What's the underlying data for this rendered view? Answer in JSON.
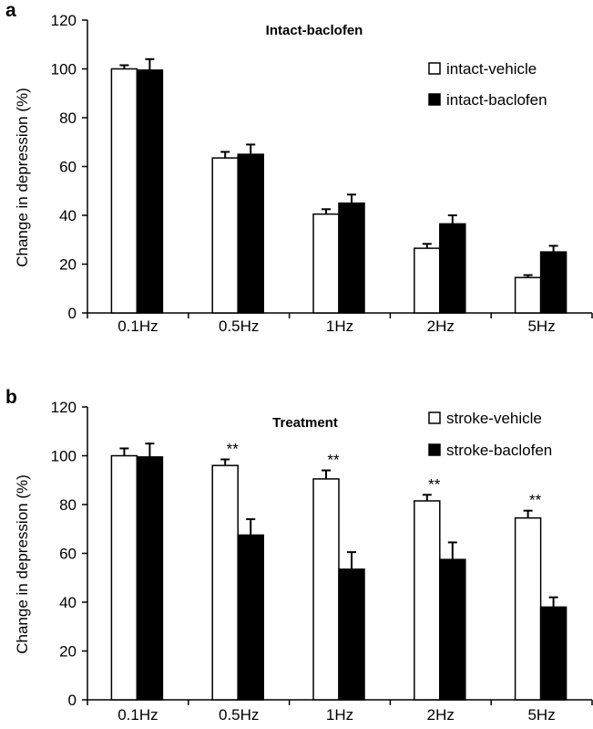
{
  "chart_data": [
    {
      "panel_label": "a",
      "type": "bar",
      "title": "Intact-baclofen",
      "xlabel": "",
      "ylabel": "Change in depression (%)",
      "ylim": [
        0,
        120
      ],
      "yticks": [
        "0",
        "20",
        "40",
        "60",
        "80",
        "100",
        "120"
      ],
      "categories": [
        "0.1Hz",
        "0.5Hz",
        "1Hz",
        "2Hz",
        "5Hz"
      ],
      "legend_position": "top-right",
      "series": [
        {
          "name": "intact-vehicle",
          "color": "#ffffff",
          "values": [
            100,
            63.5,
            40.5,
            26.5,
            14.5
          ],
          "errors": [
            1.5,
            2.5,
            2,
            1.8,
            1
          ]
        },
        {
          "name": "intact-baclofen",
          "color": "#000000",
          "values": [
            99.5,
            65,
            45,
            36.5,
            25
          ],
          "errors": [
            4.5,
            4,
            3.5,
            3.5,
            2.5
          ]
        }
      ],
      "annotations": []
    },
    {
      "panel_label": "b",
      "type": "bar",
      "title": "Treatment",
      "xlabel": "",
      "ylabel": "Change in depression (%)",
      "ylim": [
        0,
        120
      ],
      "yticks": [
        "0",
        "20",
        "40",
        "60",
        "80",
        "100",
        "120"
      ],
      "categories": [
        "0.1Hz",
        "0.5Hz",
        "1Hz",
        "2Hz",
        "5Hz"
      ],
      "legend_position": "top-right",
      "series": [
        {
          "name": "stroke-vehicle",
          "color": "#ffffff",
          "values": [
            100,
            96,
            90.5,
            81.5,
            74.5
          ],
          "errors": [
            3,
            2.5,
            3.5,
            2.5,
            3
          ]
        },
        {
          "name": "stroke-baclofen",
          "color": "#000000",
          "values": [
            99.5,
            67.5,
            53.5,
            57.5,
            38
          ],
          "errors": [
            5.5,
            6.5,
            7,
            7,
            4
          ]
        }
      ],
      "annotations": [
        {
          "category": "0.5Hz",
          "text": "**"
        },
        {
          "category": "1Hz",
          "text": "**"
        },
        {
          "category": "2Hz",
          "text": "**"
        },
        {
          "category": "5Hz",
          "text": "**"
        }
      ]
    }
  ]
}
